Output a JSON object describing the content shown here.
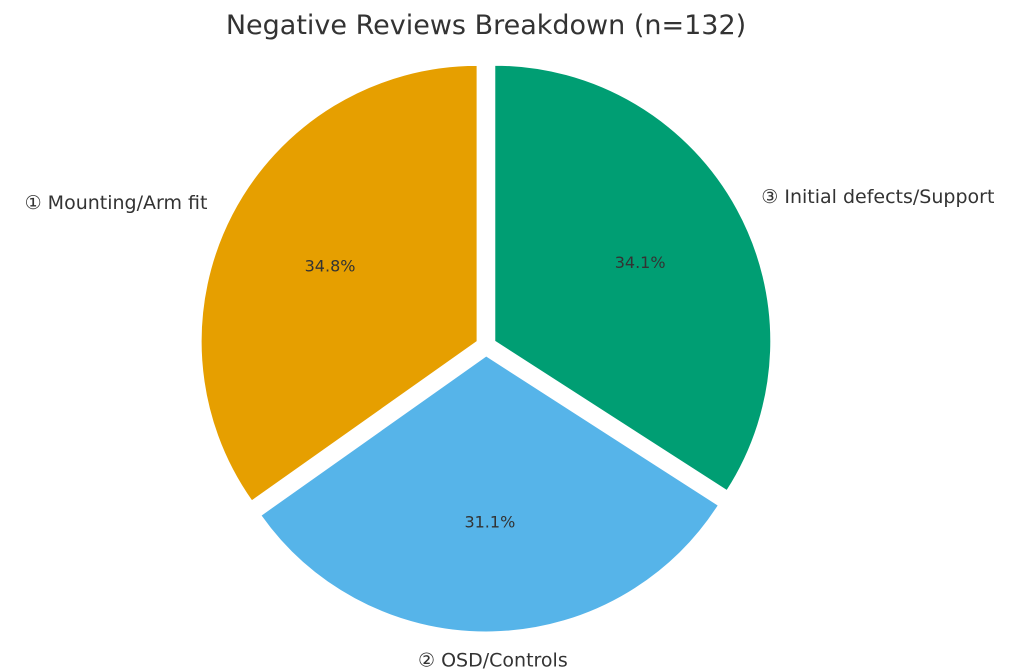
{
  "chart_data": {
    "type": "pie",
    "title": "Negative Reviews Breakdown (n=132)",
    "slices": [
      {
        "label": "① Mounting/Arm fit",
        "percent_label": "34.8%",
        "value": 34.8,
        "color": "#E69F00"
      },
      {
        "label": "② OSD/Controls",
        "percent_label": "31.1%",
        "value": 31.1,
        "color": "#56B4E9"
      },
      {
        "label": "③ Initial defects/Support",
        "percent_label": "34.1%",
        "value": 34.1,
        "color": "#009E73"
      }
    ],
    "legend": "none"
  }
}
